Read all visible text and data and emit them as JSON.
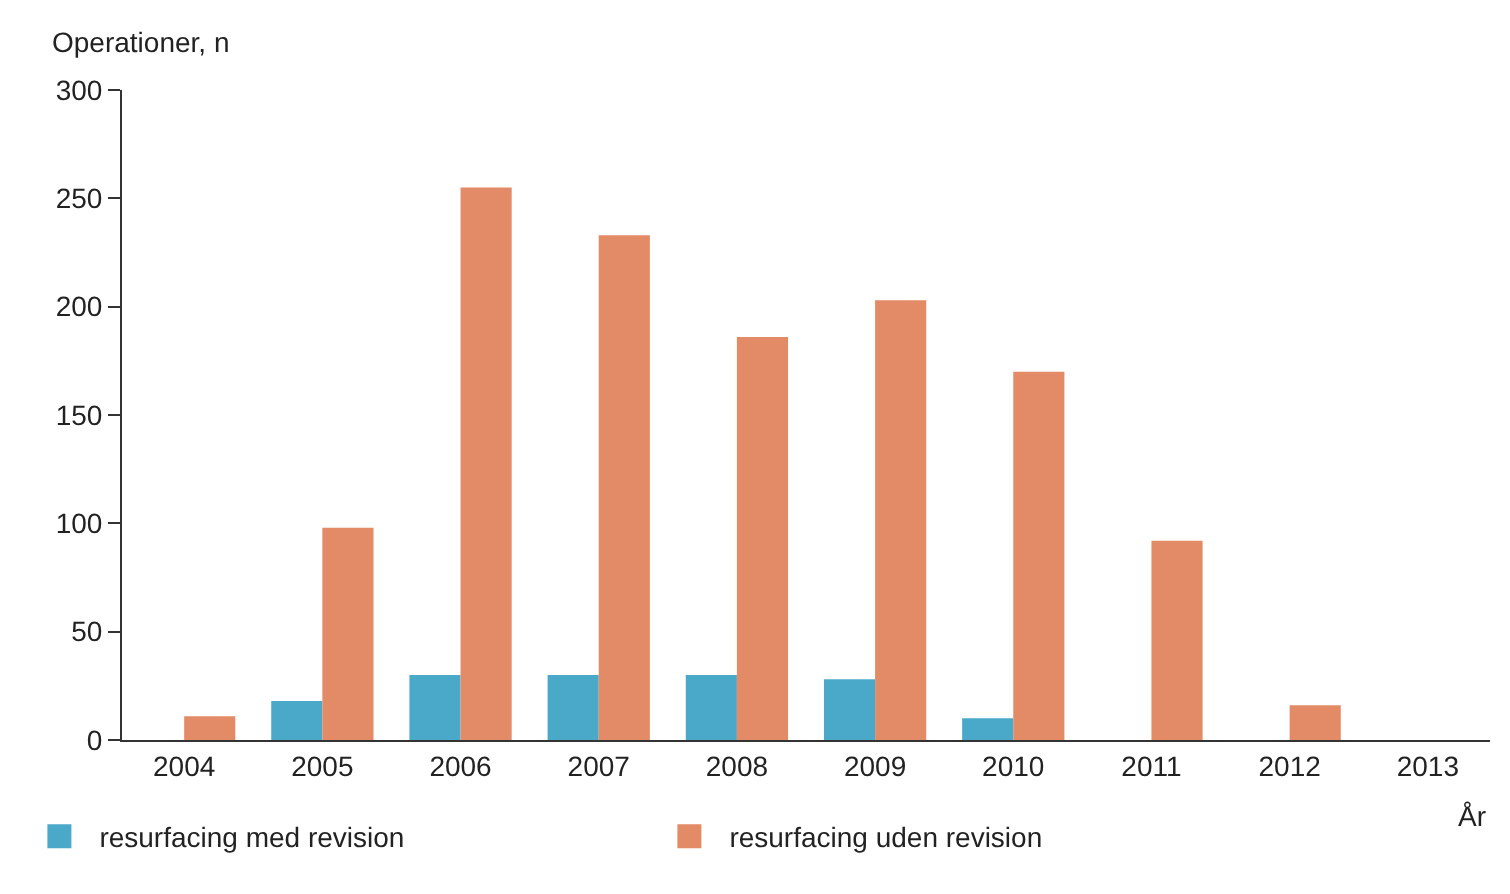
{
  "chart_data": {
    "type": "bar",
    "ylabel": "Operationer, n",
    "xlabel": "År",
    "categories": [
      "2004",
      "2005",
      "2006",
      "2007",
      "2008",
      "2009",
      "2010",
      "2011",
      "2012",
      "2013"
    ],
    "series": [
      {
        "name": "resurfacing med revision",
        "color": "#4aa8c8",
        "values": [
          null,
          18,
          30,
          30,
          30,
          28,
          10,
          null,
          null,
          null
        ]
      },
      {
        "name": "resurfacing uden revision",
        "color": "#e38a66",
        "values": [
          11,
          98,
          255,
          233,
          186,
          203,
          170,
          92,
          16,
          null
        ]
      }
    ],
    "ylim": [
      0,
      300
    ],
    "yticks": [
      0,
      50,
      100,
      150,
      200,
      250,
      300
    ],
    "grid": false,
    "legend": "bottom left"
  }
}
